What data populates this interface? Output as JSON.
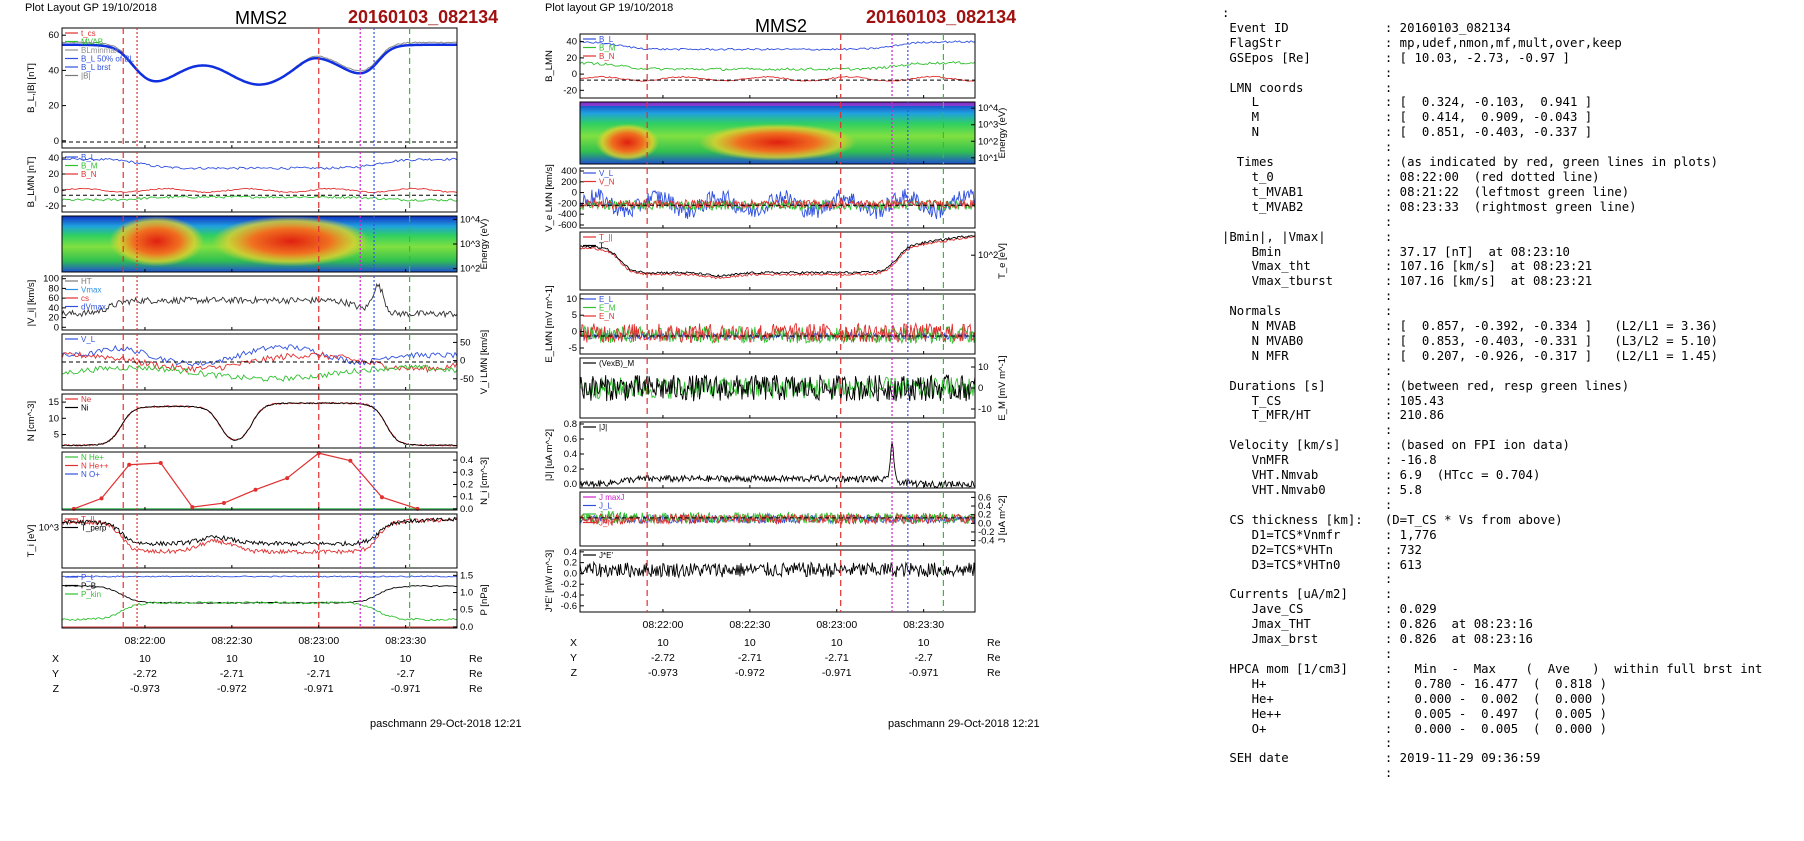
{
  "left": {
    "layout_label": "Plot Layout GP 19/10/2018",
    "mms": "MMS2",
    "event": "20160103_082134",
    "footer": "paschmann 29-Oct-2018 12:21",
    "eph": {
      "rows": [
        {
          "name": "X",
          "vals": [
            "10",
            "10",
            "10",
            "10"
          ],
          "unit": "Re"
        },
        {
          "name": "Y",
          "vals": [
            "-2.72",
            "-2.71",
            "-2.71",
            "-2.7"
          ],
          "unit": "Re"
        },
        {
          "name": "Z",
          "vals": [
            "-0.973",
            "-0.972",
            "-0.971",
            "-0.971"
          ],
          "unit": "Re"
        }
      ]
    },
    "time_ticks": [
      "08:22:00",
      "08:22:30",
      "08:23:00",
      "08:23:30"
    ],
    "panels": [
      {
        "key": "bl",
        "ylabel": "B_L,|B| [nT]",
        "ticks": [
          "60",
          "40",
          "20",
          "0"
        ],
        "legend": [
          {
            "t": "t_cs",
            "c": "#e03030"
          },
          {
            "t": "MVAB",
            "c": "#30c030"
          },
          {
            "t": "BLminmax",
            "c": "#909090"
          },
          {
            "t": "B_L 50% of BL",
            "c": "#3050e0"
          },
          {
            "t": "B_L brst",
            "c": "#3050e0"
          },
          {
            "t": "|B|",
            "c": "#777777"
          }
        ]
      },
      {
        "key": "blmn",
        "ylabel": "B_LMN [nT]",
        "ticks": [
          "40",
          "20",
          "0",
          "-20"
        ],
        "legend": [
          {
            "t": "B_L",
            "c": "#3050e0"
          },
          {
            "t": "B_M",
            "c": "#30c030"
          },
          {
            "t": "B_N",
            "c": "#e03030"
          }
        ]
      },
      {
        "key": "spec",
        "ylabel": "Energy (eV)",
        "ticks": [
          "10^4",
          "10^3",
          "10^2"
        ],
        "legend": []
      },
      {
        "key": "vi",
        "ylabel": "|V_i| [km/s]",
        "ticks": [
          "100",
          "80",
          "60",
          "40",
          "20",
          "0"
        ],
        "legend": [
          {
            "t": "HT",
            "c": "#777777"
          },
          {
            "t": "Vmax",
            "c": "#3090e0"
          },
          {
            "t": "cs",
            "c": "#e03030"
          },
          {
            "t": "dVmax",
            "c": "#3050e0"
          }
        ]
      },
      {
        "key": "vilmn",
        "ylabel": "V_i LMN [km/s]",
        "ticks": [
          "50",
          "0",
          "-50"
        ],
        "legend": [
          {
            "t": "V_L",
            "c": "#3050e0"
          }
        ]
      },
      {
        "key": "n",
        "ylabel": "N [cm^-3]",
        "ticks": [
          "15",
          "10",
          "5"
        ],
        "legend": [
          {
            "t": "Ne",
            "c": "#e03030"
          },
          {
            "t": "Ni",
            "c": "#000000"
          }
        ]
      },
      {
        "key": "nhpca",
        "ylabel": "N_i [cm^-3]",
        "ticks": [
          "0.4",
          "0.3",
          "0.2",
          "0.1",
          "0.0"
        ],
        "legend": [
          {
            "t": "N He+",
            "c": "#30c030"
          },
          {
            "t": "N He++",
            "c": "#e03030"
          },
          {
            "t": "N O+",
            "c": "#3050e0"
          }
        ]
      },
      {
        "key": "ti",
        "ylabel": "T_i [eV]",
        "ticks": [
          "10^3"
        ],
        "legend": [
          {
            "t": "T_||",
            "c": "#e03030"
          },
          {
            "t": "T_perp",
            "c": "#000000"
          }
        ]
      },
      {
        "key": "p",
        "ylabel": "P [nPa]",
        "ticks": [
          "1.5",
          "1.0",
          "0.5",
          "0.0"
        ],
        "legend": [
          {
            "t": "P_t",
            "c": "#3050e0"
          },
          {
            "t": "P_B",
            "c": "#000000"
          },
          {
            "t": "P_kin",
            "c": "#30c030"
          }
        ]
      }
    ]
  },
  "mid": {
    "layout_label": "Plot layout GP 19/10/2018",
    "mms": "MMS2",
    "event": "20160103_082134",
    "footer": "paschmann 29-Oct-2018 12:21",
    "eph": {
      "rows": [
        {
          "name": "X",
          "vals": [
            "10",
            "10",
            "10",
            "10"
          ],
          "unit": "Re"
        },
        {
          "name": "Y",
          "vals": [
            "-2.72",
            "-2.71",
            "-2.71",
            "-2.7"
          ],
          "unit": "Re"
        },
        {
          "name": "Z",
          "vals": [
            "-0.973",
            "-0.972",
            "-0.971",
            "-0.971"
          ],
          "unit": "Re"
        }
      ]
    },
    "time_ticks": [
      "08:22:00",
      "08:22:30",
      "08:23:00",
      "08:23:30"
    ],
    "panels": [
      {
        "key": "blmn",
        "ylabel": "B_LMN",
        "ticks": [
          "40",
          "20",
          "0",
          "-20"
        ],
        "legend": [
          {
            "t": "B_L",
            "c": "#3050e0"
          },
          {
            "t": "B_M",
            "c": "#30c030"
          },
          {
            "t": "B_N",
            "c": "#e03030"
          }
        ]
      },
      {
        "key": "spec",
        "ylabel": "Energy (eV)",
        "ticks": [
          "10^4",
          "10^3",
          "10^2",
          "10^1"
        ],
        "legend": []
      },
      {
        "key": "ve",
        "ylabel": "V_e LMN [km/s]",
        "ticks": [
          "400",
          "200",
          "0",
          "-200",
          "-400",
          "-600"
        ],
        "legend": [
          {
            "t": "V_L",
            "c": "#3050e0"
          },
          {
            "t": "V_N",
            "c": "#e03030"
          }
        ]
      },
      {
        "key": "te",
        "ylabel": "T_e [eV]",
        "ticks": [
          "10^2"
        ],
        "legend": [
          {
            "t": "T_||",
            "c": "#e03030"
          },
          {
            "t": "T",
            "c": "#000000"
          }
        ]
      },
      {
        "key": "elmn",
        "ylabel": "E_LMN [mV m^-1]",
        "ticks": [
          "10",
          "5",
          "0",
          "-5"
        ],
        "legend": [
          {
            "t": "E_L",
            "c": "#3050e0"
          },
          {
            "t": "E_M",
            "c": "#30c030"
          },
          {
            "t": "E_N",
            "c": "#e03030"
          }
        ]
      },
      {
        "key": "em",
        "ylabel": "E_M [mV m^-1]",
        "ticks": [
          "10",
          "0",
          "-10"
        ],
        "legend": [
          {
            "t": "(VexB)_M",
            "c": "#000000"
          }
        ]
      },
      {
        "key": "j",
        "ylabel": "|J| [uA m^-2]",
        "ticks": [
          "0.8",
          "0.6",
          "0.4",
          "0.2",
          "0.0"
        ],
        "legend": [
          {
            "t": "|J|",
            "c": "#000000"
          }
        ]
      },
      {
        "key": "jlmn",
        "ylabel": "J [uA m^-2]",
        "ticks": [
          "0.6",
          "0.4",
          "0.2",
          "0.0",
          "-0.2",
          "-0.4"
        ],
        "legend": [
          {
            "t": "J maxJ",
            "c": "#d020d0"
          },
          {
            "t": "J_L",
            "c": "#3050e0"
          },
          {
            "t": "J_M",
            "c": "#30c030"
          },
          {
            "t": "J_N",
            "c": "#e03030"
          }
        ]
      },
      {
        "key": "je",
        "ylabel": "J*E' [nW m^-3]",
        "ticks": [
          "0.4",
          "0.2",
          "0.0",
          "-0.2",
          "-0.4",
          "-0.6"
        ],
        "legend": [
          {
            "t": "J*E'",
            "c": "#000000"
          }
        ]
      }
    ]
  },
  "info_lines": [
    ":",
    " Event ID             : 20160103_082134",
    " FlagStr              : mp,udef,nmon,mf,mult,over,keep",
    " GSEpos [Re]          : [ 10.03, -2.73, -0.97 ]",
    "                      :",
    " LMN coords           :",
    "    L                 : [  0.324, -0.103,  0.941 ]",
    "    M                 : [  0.414,  0.909, -0.043 ]",
    "    N                 : [  0.851, -0.403, -0.337 ]",
    "                      :",
    "  Times               : (as indicated by red, green lines in plots)",
    "    t_0               : 08:22:00  (red dotted line)",
    "    t_MVAB1           : 08:21:22  (leftmost green line)",
    "    t_MVAB2           : 08:23:33  (rightmost green line)",
    "                      :",
    "|Bmin|, |Vmax|        :",
    "    Bmin              : 37.17 [nT]  at 08:23:10",
    "    Vmax_tht          : 107.16 [km/s]  at 08:23:21",
    "    Vmax_tburst       : 107.16 [km/s]  at 08:23:21",
    "                      :",
    " Normals              :",
    "    N MVAB            : [  0.857, -0.392, -0.334 ]   (L2/L1 = 3.36)",
    "    N MVAB0           : [  0.853, -0.403, -0.331 ]   (L3/L2 = 5.10)",
    "    N MFR             : [  0.207, -0.926, -0.317 ]   (L2/L1 = 1.45)",
    "                      :",
    " Durations [s]        : (between red, resp green lines)",
    "    T_CS              : 105.43",
    "    T_MFR/HT          : 210.86",
    "                      :",
    " Velocity [km/s]      : (based on FPI ion data)",
    "    VnMFR             : -16.8",
    "    VHT.Nmvab         : 6.9  (HTcc = 0.704)",
    "    VHT.Nmvab0        : 5.8",
    "                      :",
    " CS thickness [km]:   (D=T_CS * Vs from above)",
    "    D1=TCS*Vnmfr      : 1,776",
    "    D2=TCS*VHTn       : 732",
    "    D3=TCS*VHTn0      : 613",
    "                      :",
    " Currents [uA/m2]     :",
    "    Jave_CS           : 0.029",
    "    Jmax_THT          : 0.826  at 08:23:16",
    "    Jmax_brst         : 0.826  at 08:23:16",
    "                      :",
    " HPCA mom [1/cm3]     :   Min  -  Max    (  Ave   )  within full brst int",
    "    H+                :   0.780 - 16.477  (  0.818 )",
    "    He+               :   0.000 -  0.002  (  0.000 )",
    "    He++              :   0.005 -  0.497  (  0.005 )",
    "    O+                :   0.000 -  0.005  (  0.000 )",
    "                      :",
    " SEH date             : 2019-11-29 09:36:59",
    "                      :"
  ]
}
